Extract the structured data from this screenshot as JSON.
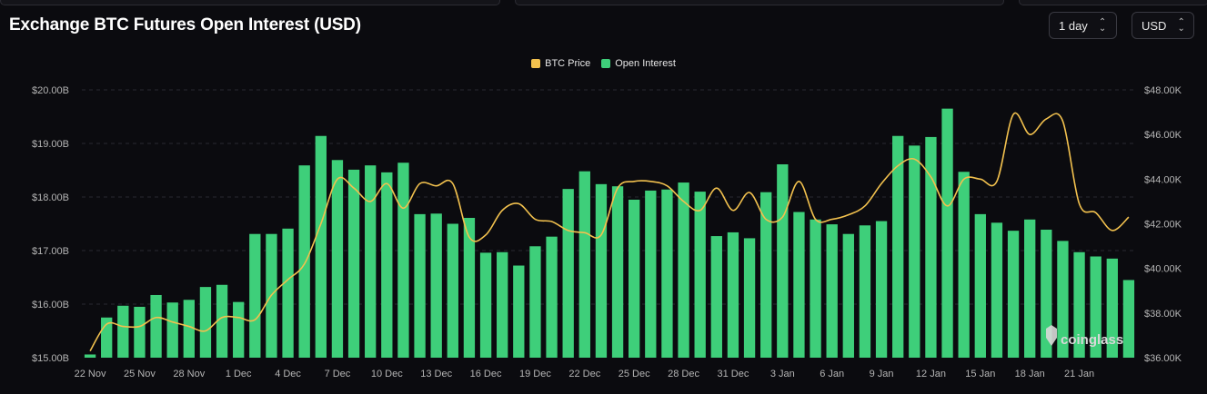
{
  "header": {
    "title": "Exchange BTC Futures Open Interest (USD)",
    "interval_select": "1 day",
    "currency_select": "USD"
  },
  "watermark": "coinglass",
  "colors": {
    "bar": "#3ecf7a",
    "line": "#f2c14e",
    "grid": "#2a2a30",
    "background": "#0b0b0f"
  },
  "chart_data": {
    "type": "bar",
    "legend": [
      "BTC Price",
      "Open Interest"
    ],
    "legend_position": "top-center",
    "grid": true,
    "x_tick_labels": [
      "22 Nov",
      "25 Nov",
      "28 Nov",
      "1 Dec",
      "4 Dec",
      "7 Dec",
      "10 Dec",
      "13 Dec",
      "16 Dec",
      "19 Dec",
      "22 Dec",
      "25 Dec",
      "28 Dec",
      "31 Dec",
      "3 Jan",
      "6 Jan",
      "9 Jan",
      "12 Jan",
      "15 Jan",
      "18 Jan",
      "21 Jan"
    ],
    "y_left": {
      "ticks": [
        "$15.00B",
        "$16.00B",
        "$17.00B",
        "$18.00B",
        "$19.00B",
        "$20.00B"
      ],
      "range": [
        15.0,
        20.0
      ],
      "unit": "B USD"
    },
    "y_right": {
      "ticks": [
        "$36.00K",
        "$38.00K",
        "$40.00K",
        "$42.00K",
        "$44.00K",
        "$46.00K",
        "$48.00K"
      ],
      "range": [
        36.0,
        48.0
      ],
      "unit": "K USD"
    },
    "series": [
      {
        "name": "Open Interest",
        "type": "bar",
        "axis": "left",
        "values": [
          15.06,
          15.75,
          15.97,
          15.95,
          16.17,
          16.03,
          16.08,
          16.32,
          16.36,
          16.04,
          17.31,
          17.31,
          17.41,
          18.59,
          19.14,
          18.69,
          18.51,
          18.59,
          18.46,
          18.64,
          17.68,
          17.69,
          17.5,
          17.61,
          16.96,
          16.97,
          16.72,
          17.08,
          17.26,
          18.15,
          18.48,
          18.24,
          18.2,
          17.95,
          18.12,
          18.14,
          18.27,
          18.1,
          17.27,
          17.34,
          17.23,
          18.09,
          18.61,
          17.72,
          17.58,
          17.49,
          17.31,
          17.47,
          17.55,
          19.14,
          18.96,
          19.12,
          19.65,
          18.47,
          17.68,
          17.52,
          17.37,
          17.58,
          17.39,
          17.18,
          16.97,
          16.89,
          16.85,
          16.45
        ]
      },
      {
        "name": "BTC Price",
        "type": "line",
        "axis": "right",
        "values": [
          36.3,
          37.5,
          37.4,
          37.4,
          37.8,
          37.6,
          37.4,
          37.2,
          37.8,
          37.8,
          37.7,
          38.8,
          39.5,
          40.2,
          42.0,
          44.0,
          43.6,
          43.0,
          43.8,
          42.7,
          43.8,
          43.7,
          43.8,
          41.4,
          41.5,
          42.6,
          42.9,
          42.2,
          42.1,
          41.7,
          41.6,
          41.5,
          43.6,
          43.9,
          43.9,
          43.7,
          43.0,
          42.6,
          43.6,
          42.6,
          43.4,
          42.2,
          42.3,
          43.9,
          42.2,
          42.2,
          42.4,
          42.8,
          43.8,
          44.6,
          44.9,
          44.1,
          42.8,
          44.0,
          44.0,
          43.9,
          46.9,
          46.0,
          46.7,
          46.6,
          42.9,
          42.5,
          41.7,
          42.3
        ]
      }
    ]
  }
}
